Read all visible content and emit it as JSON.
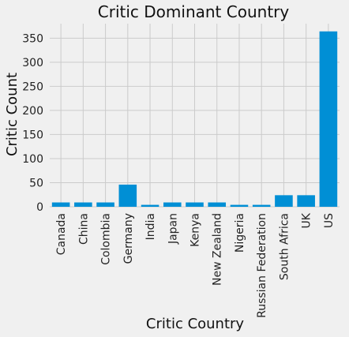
{
  "chart_data": {
    "type": "bar",
    "title": "Critic Dominant Country",
    "xlabel": "Critic Country",
    "ylabel": "Critic Count",
    "categories": [
      "Canada",
      "China",
      "Colombia",
      "Germany",
      "India",
      "Japan",
      "Kenya",
      "New Zealand",
      "Nigeria",
      "Russian Federation",
      "South Africa",
      "UK",
      "US"
    ],
    "values": [
      9,
      9,
      9,
      46,
      4,
      9,
      9,
      9,
      4,
      4,
      24,
      24,
      364
    ],
    "ylim": [
      0,
      380
    ],
    "yticks": [
      0,
      50,
      100,
      150,
      200,
      250,
      300,
      350
    ],
    "grid": true,
    "bar_color": "#008fd5",
    "background_color": "#f0f0f0"
  }
}
